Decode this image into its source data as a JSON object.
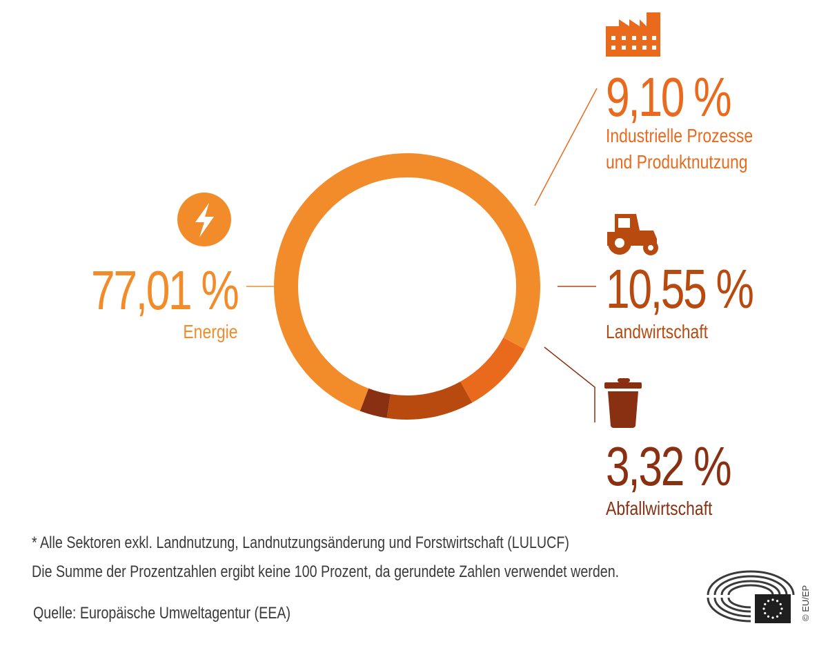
{
  "chart_data": {
    "type": "pie",
    "variant": "donut",
    "categories": [
      "Energie",
      "Industrielle Prozesse und Produktnutzung",
      "Landwirtschaft",
      "Abfallwirtschaft"
    ],
    "values": [
      77.01,
      9.1,
      10.55,
      3.32
    ],
    "colors": [
      "#f28c2a",
      "#e96a1d",
      "#b8490f",
      "#8a3012"
    ],
    "value_labels": [
      "77,01 %",
      "9,10 %",
      "10,55 %",
      "3,32 %"
    ],
    "labels": {
      "energy": {
        "pct": "77,01 %",
        "name": "Energie",
        "icon": "lightning-icon"
      },
      "industry": {
        "pct": "9,10 %",
        "name_line1": "Industrielle Prozesse",
        "name_line2": "und Produktnutzung",
        "icon": "factory-icon"
      },
      "agriculture": {
        "pct": "10,55 %",
        "name": "Landwirtschaft",
        "icon": "tractor-icon"
      },
      "waste": {
        "pct": "3,32 %",
        "name": "Abfallwirtschaft",
        "icon": "trash-can-icon"
      }
    }
  },
  "footnote": "* Alle Sektoren exkl. Landnutzung, Landnutzungsänderung und Forstwirtschaft (LULUCF)",
  "rounding_note": "Die Summe der Prozentzahlen ergibt keine 100 Prozent, da gerundete Zahlen verwendet werden.",
  "source": "Quelle: Europäische Umweltagentur (EEA)",
  "copyright": "© EU/EP",
  "logo": "european-parliament-logo"
}
